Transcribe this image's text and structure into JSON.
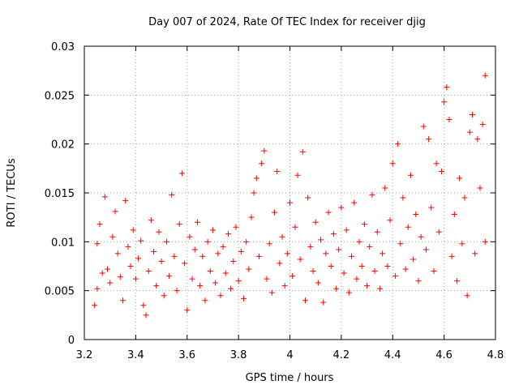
{
  "chart_data": {
    "type": "scatter",
    "title": "Day 007 of 2024, Rate Of TEC Index for receiver djig",
    "xlabel": "GPS time / hours",
    "ylabel": "ROTI / TECUs",
    "xlim": [
      3.2,
      4.8
    ],
    "ylim": [
      0,
      0.03
    ],
    "x_ticks": [
      3.2,
      3.4,
      3.6,
      3.8,
      4.0,
      4.2,
      4.4,
      4.6,
      4.8
    ],
    "x_tick_labels": [
      "3.2",
      "3.4",
      "3.6",
      "3.8",
      "4",
      "4.2",
      "4.4",
      "4.6",
      "4.8"
    ],
    "y_ticks": [
      0,
      0.005,
      0.01,
      0.015,
      0.02,
      0.025,
      0.03
    ],
    "y_tick_labels": [
      "0",
      "0.005",
      "0.01",
      "0.015",
      "0.02",
      "0.025",
      "0.03"
    ],
    "grid": true,
    "marker": "+",
    "color": "#ff0000",
    "series": [
      {
        "name": "ROTI",
        "points": [
          [
            3.24,
            0.0035
          ],
          [
            3.25,
            0.0052
          ],
          [
            3.25,
            0.0098
          ],
          [
            3.26,
            0.0118
          ],
          [
            3.27,
            0.0068
          ],
          [
            3.28,
            0.0146
          ],
          [
            3.29,
            0.0072
          ],
          [
            3.3,
            0.0058
          ],
          [
            3.31,
            0.0105
          ],
          [
            3.32,
            0.0131
          ],
          [
            3.33,
            0.0088
          ],
          [
            3.34,
            0.0064
          ],
          [
            3.35,
            0.004
          ],
          [
            3.36,
            0.0142
          ],
          [
            3.37,
            0.0095
          ],
          [
            3.38,
            0.0075
          ],
          [
            3.39,
            0.0112
          ],
          [
            3.4,
            0.0062
          ],
          [
            3.41,
            0.0083
          ],
          [
            3.42,
            0.0101
          ],
          [
            3.43,
            0.0035
          ],
          [
            3.44,
            0.0025
          ],
          [
            3.45,
            0.007
          ],
          [
            3.46,
            0.0122
          ],
          [
            3.47,
            0.009
          ],
          [
            3.48,
            0.0055
          ],
          [
            3.49,
            0.011
          ],
          [
            3.5,
            0.008
          ],
          [
            3.51,
            0.0045
          ],
          [
            3.52,
            0.01
          ],
          [
            3.53,
            0.0065
          ],
          [
            3.54,
            0.0148
          ],
          [
            3.55,
            0.0085
          ],
          [
            3.56,
            0.005
          ],
          [
            3.57,
            0.0118
          ],
          [
            3.58,
            0.017
          ],
          [
            3.59,
            0.0078
          ],
          [
            3.6,
            0.003
          ],
          [
            3.61,
            0.0105
          ],
          [
            3.62,
            0.0062
          ],
          [
            3.63,
            0.0092
          ],
          [
            3.64,
            0.012
          ],
          [
            3.65,
            0.0055
          ],
          [
            3.66,
            0.0085
          ],
          [
            3.67,
            0.004
          ],
          [
            3.68,
            0.01
          ],
          [
            3.69,
            0.007
          ],
          [
            3.7,
            0.0112
          ],
          [
            3.71,
            0.0058
          ],
          [
            3.72,
            0.0088
          ],
          [
            3.73,
            0.0045
          ],
          [
            3.74,
            0.0095
          ],
          [
            3.75,
            0.0068
          ],
          [
            3.76,
            0.0108
          ],
          [
            3.77,
            0.0052
          ],
          [
            3.78,
            0.008
          ],
          [
            3.79,
            0.0115
          ],
          [
            3.8,
            0.006
          ],
          [
            3.81,
            0.009
          ],
          [
            3.82,
            0.0042
          ],
          [
            3.83,
            0.01
          ],
          [
            3.84,
            0.0072
          ],
          [
            3.85,
            0.0125
          ],
          [
            3.86,
            0.015
          ],
          [
            3.87,
            0.0165
          ],
          [
            3.88,
            0.0085
          ],
          [
            3.89,
            0.018
          ],
          [
            3.9,
            0.0193
          ],
          [
            3.91,
            0.0062
          ],
          [
            3.92,
            0.0098
          ],
          [
            3.93,
            0.0048
          ],
          [
            3.94,
            0.013
          ],
          [
            3.95,
            0.0172
          ],
          [
            3.96,
            0.0078
          ],
          [
            3.97,
            0.0105
          ],
          [
            3.98,
            0.0055
          ],
          [
            3.99,
            0.0088
          ],
          [
            4.0,
            0.014
          ],
          [
            4.01,
            0.0065
          ],
          [
            4.02,
            0.0115
          ],
          [
            4.03,
            0.0168
          ],
          [
            4.04,
            0.0082
          ],
          [
            4.05,
            0.0192
          ],
          [
            4.06,
            0.004
          ],
          [
            4.07,
            0.0145
          ],
          [
            4.08,
            0.0095
          ],
          [
            4.09,
            0.007
          ],
          [
            4.1,
            0.012
          ],
          [
            4.11,
            0.0058
          ],
          [
            4.12,
            0.0102
          ],
          [
            4.13,
            0.0038
          ],
          [
            4.14,
            0.0088
          ],
          [
            4.15,
            0.013
          ],
          [
            4.16,
            0.0075
          ],
          [
            4.17,
            0.0108
          ],
          [
            4.18,
            0.0052
          ],
          [
            4.19,
            0.0092
          ],
          [
            4.2,
            0.0135
          ],
          [
            4.21,
            0.0068
          ],
          [
            4.22,
            0.0112
          ],
          [
            4.23,
            0.0048
          ],
          [
            4.24,
            0.0085
          ],
          [
            4.25,
            0.014
          ],
          [
            4.26,
            0.0062
          ],
          [
            4.27,
            0.01
          ],
          [
            4.28,
            0.0075
          ],
          [
            4.29,
            0.0118
          ],
          [
            4.3,
            0.0055
          ],
          [
            4.31,
            0.0095
          ],
          [
            4.32,
            0.0148
          ],
          [
            4.33,
            0.007
          ],
          [
            4.34,
            0.011
          ],
          [
            4.35,
            0.0052
          ],
          [
            4.36,
            0.0088
          ],
          [
            4.37,
            0.0155
          ],
          [
            4.38,
            0.0075
          ],
          [
            4.39,
            0.0122
          ],
          [
            4.4,
            0.018
          ],
          [
            4.41,
            0.0065
          ],
          [
            4.42,
            0.02
          ],
          [
            4.43,
            0.0098
          ],
          [
            4.44,
            0.0145
          ],
          [
            4.45,
            0.0072
          ],
          [
            4.46,
            0.0115
          ],
          [
            4.47,
            0.0168
          ],
          [
            4.48,
            0.0082
          ],
          [
            4.49,
            0.0128
          ],
          [
            4.5,
            0.006
          ],
          [
            4.51,
            0.0105
          ],
          [
            4.52,
            0.0218
          ],
          [
            4.53,
            0.0092
          ],
          [
            4.54,
            0.0205
          ],
          [
            4.55,
            0.0135
          ],
          [
            4.56,
            0.007
          ],
          [
            4.57,
            0.018
          ],
          [
            4.58,
            0.011
          ],
          [
            4.59,
            0.0172
          ],
          [
            4.6,
            0.0243
          ],
          [
            4.61,
            0.0258
          ],
          [
            4.62,
            0.0225
          ],
          [
            4.63,
            0.0085
          ],
          [
            4.64,
            0.0128
          ],
          [
            4.65,
            0.006
          ],
          [
            4.66,
            0.0165
          ],
          [
            4.67,
            0.0098
          ],
          [
            4.68,
            0.0145
          ],
          [
            4.69,
            0.0045
          ],
          [
            4.7,
            0.0212
          ],
          [
            4.71,
            0.023
          ],
          [
            4.72,
            0.0088
          ],
          [
            4.73,
            0.0205
          ],
          [
            4.74,
            0.0155
          ],
          [
            4.75,
            0.022
          ],
          [
            4.76,
            0.027
          ],
          [
            4.76,
            0.01
          ]
        ]
      }
    ]
  }
}
